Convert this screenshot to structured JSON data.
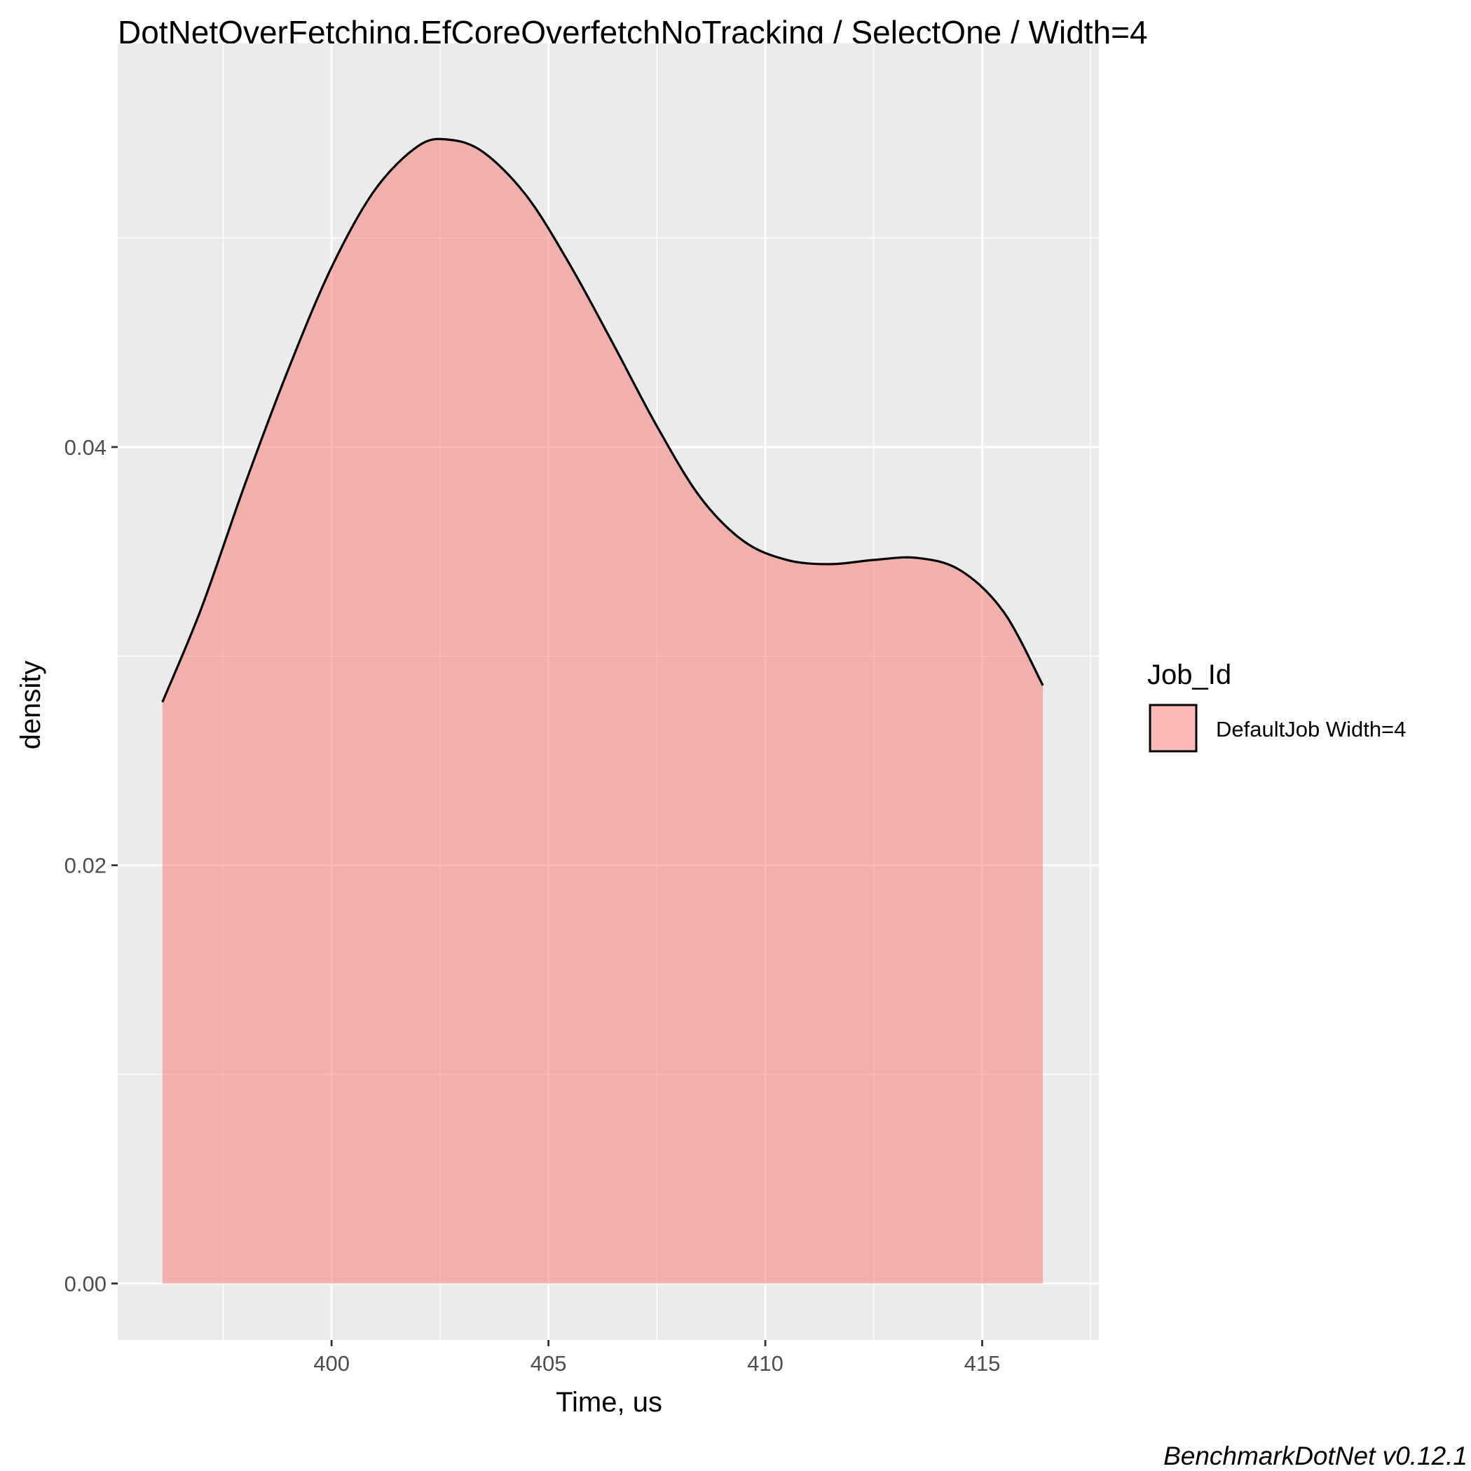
{
  "chart_data": {
    "type": "area",
    "title": "DotNetOverFetching.EfCoreOverfetchNoTracking / SelectOne / Width=4",
    "xlabel": "Time, us",
    "ylabel": "density",
    "xlim": [
      395.07,
      417.69
    ],
    "ylim": [
      -0.0027,
      0.0593
    ],
    "x_ticks": [
      400,
      405,
      410,
      415
    ],
    "x_tick_labels": [
      "400",
      "405",
      "410",
      "415"
    ],
    "y_ticks": [
      0.0,
      0.02,
      0.04
    ],
    "y_tick_labels": [
      "0.00",
      "0.02",
      "0.04"
    ],
    "grid": true,
    "legend": {
      "title": "Job_Id",
      "position": "right"
    },
    "series": [
      {
        "name": "DefaultJob Width=4",
        "fill": "#f8766d",
        "fill_opacity": 0.5,
        "line": "#000000",
        "x": [
          396.1,
          397.0,
          398.0,
          399.0,
          400.0,
          401.0,
          402.0,
          402.7,
          403.5,
          404.5,
          405.5,
          406.5,
          407.5,
          408.5,
          409.5,
          410.5,
          411.5,
          412.5,
          413.5,
          414.5,
          415.5,
          416.4
        ],
        "y": [
          0.0278,
          0.0323,
          0.0382,
          0.0437,
          0.0486,
          0.0523,
          0.0544,
          0.0547,
          0.0541,
          0.052,
          0.0487,
          0.0449,
          0.041,
          0.0376,
          0.0355,
          0.0346,
          0.0344,
          0.0346,
          0.0347,
          0.0341,
          0.0321,
          0.0286
        ]
      }
    ]
  },
  "caption": "BenchmarkDotNet v0.12.1",
  "colors": {
    "panel_bg": "#ebebeb",
    "grid": "#ffffff",
    "area_fill": "#f8766d"
  }
}
